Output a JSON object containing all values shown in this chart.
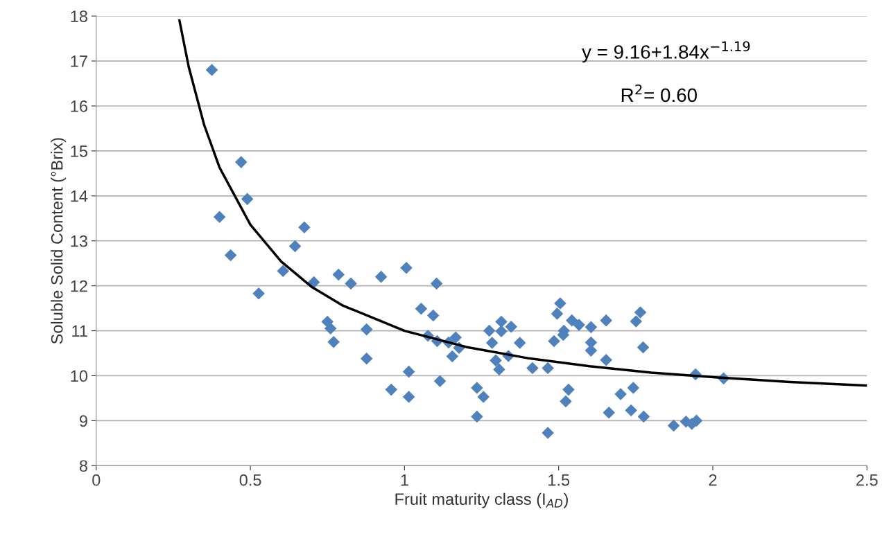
{
  "chart_data": {
    "type": "scatter",
    "xlabel": "Fruit maturity class (I$_{AD}$)",
    "ylabel": "Soluble Solid Content (°Brix)",
    "xlim": [
      0,
      2.5
    ],
    "xticks": [
      0,
      0.5,
      1,
      1.5,
      2,
      2.5
    ],
    "ylim": [
      8,
      18
    ],
    "yticks": [
      8,
      9,
      10,
      11,
      12,
      13,
      14,
      15,
      16,
      17,
      18
    ],
    "grid": "y",
    "marker": "diamond",
    "annotations": [
      "y = 9.16+1.84x$^{−1.19}$",
      "R$^{2}$= 0.60"
    ],
    "series": [
      {
        "color": "#4f81bd",
        "x": [
          0.375,
          0.47,
          0.49,
          0.4,
          0.436,
          0.675,
          0.645,
          0.606,
          0.527,
          0.706,
          0.786,
          0.826,
          0.924,
          1.006,
          1.104,
          1.054,
          1.093,
          0.75,
          0.76,
          0.77,
          0.877,
          0.877,
          1.076,
          1.106,
          1.143,
          1.166,
          1.177,
          1.155,
          1.014,
          0.957,
          1.014,
          1.115,
          1.235,
          1.256,
          1.235,
          1.275,
          1.314,
          1.314,
          1.346,
          1.284,
          1.374,
          1.296,
          1.307,
          1.337,
          1.415,
          1.465,
          1.465,
          1.485,
          1.495,
          1.505,
          1.517,
          1.515,
          1.543,
          1.566,
          1.605,
          1.605,
          1.605,
          1.654,
          1.654,
          1.532,
          1.523,
          1.663,
          1.701,
          1.765,
          1.751,
          1.774,
          1.742,
          1.735,
          1.776,
          1.873,
          1.913,
          1.932,
          1.947,
          1.944,
          2.035
        ],
        "values": [
          16.8,
          14.75,
          13.93,
          13.53,
          12.68,
          13.3,
          12.88,
          12.33,
          11.83,
          12.08,
          12.25,
          12.05,
          12.2,
          12.4,
          12.05,
          11.49,
          11.34,
          11.2,
          11.05,
          10.75,
          11.03,
          10.38,
          10.89,
          10.77,
          10.74,
          10.85,
          10.62,
          10.43,
          10.09,
          9.69,
          9.53,
          9.88,
          9.73,
          9.53,
          9.09,
          11.0,
          11.2,
          10.99,
          11.09,
          10.73,
          10.73,
          10.34,
          10.14,
          10.44,
          10.17,
          10.17,
          8.73,
          10.77,
          11.38,
          11.61,
          11.0,
          10.91,
          11.23,
          11.13,
          11.08,
          10.74,
          10.56,
          11.23,
          10.35,
          9.69,
          9.43,
          9.18,
          9.59,
          11.41,
          11.21,
          10.63,
          9.73,
          9.23,
          9.09,
          8.89,
          8.98,
          8.93,
          9.0,
          10.03,
          9.94
        ]
      },
      {
        "type": "line",
        "color": "#000000",
        "marker": "none",
        "line_style": "solid",
        "x": [
          0.27,
          0.3,
          0.35,
          0.4,
          0.5,
          0.6,
          0.7,
          0.8,
          1,
          1.2,
          1.4,
          1.6,
          1.8,
          2,
          2.25,
          2.5
        ],
        "values": [
          17.9,
          16.87,
          15.58,
          14.63,
          13.36,
          12.54,
          11.97,
          11.56,
          11.0,
          10.64,
          10.39,
          10.21,
          10.07,
          9.97,
          9.86,
          9.78
        ]
      }
    ]
  }
}
